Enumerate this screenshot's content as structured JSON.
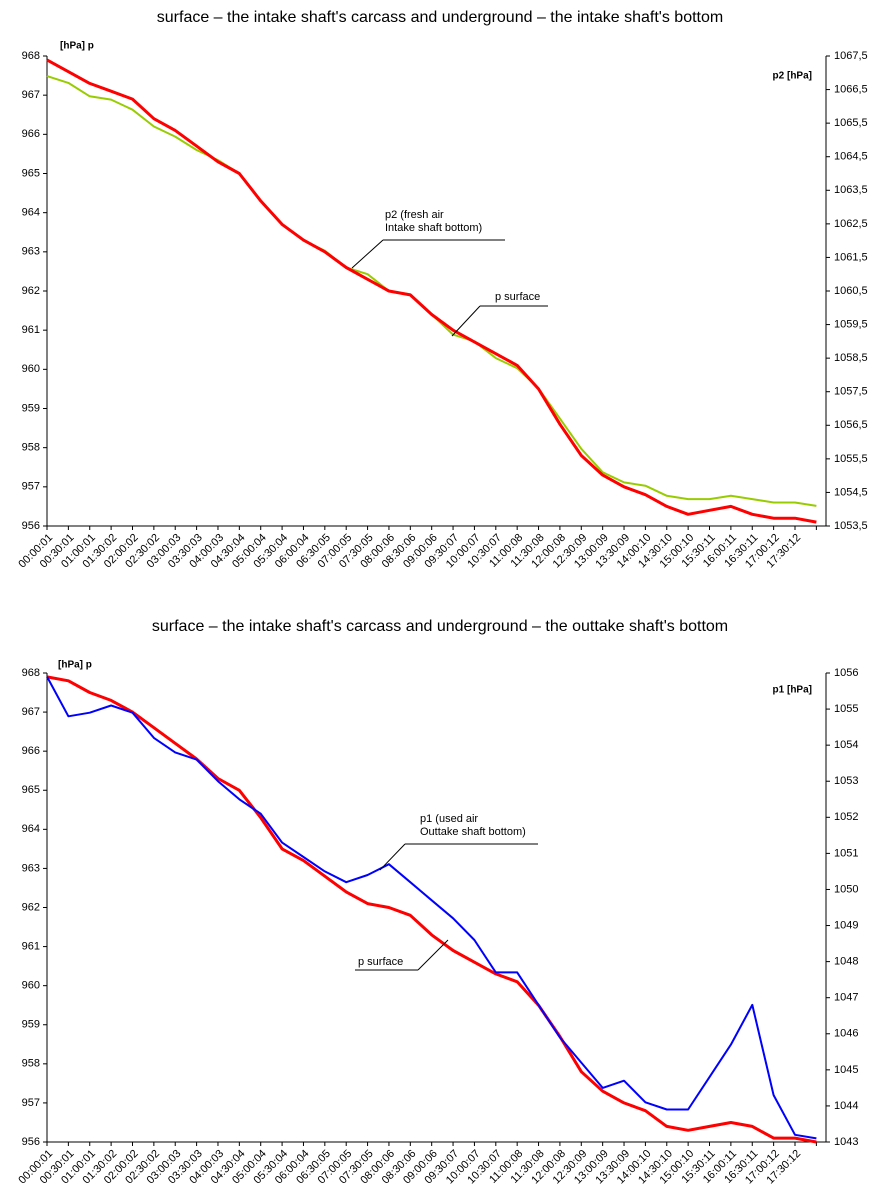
{
  "chart_data": [
    {
      "type": "line",
      "title": "surface – the intake shaft's carcass and underground – the intake shaft's bottom",
      "y_label": "[hPa] p",
      "y2_label": "p2 [hPa]",
      "categories": [
        "00:00:01",
        "00:30:01",
        "01:00:01",
        "01:30:02",
        "02:00:02",
        "02:30:02",
        "03:00:03",
        "03:30:03",
        "04:00:03",
        "04:30:04",
        "05:00:04",
        "05:30:04",
        "06:00:04",
        "06:30:05",
        "07:00:05",
        "07:30:05",
        "08:00:06",
        "08:30:06",
        "09:00:06",
        "09:30:07",
        "10:00:07",
        "10:30:07",
        "11:00:08",
        "11:30:08",
        "12:00:08",
        "12:30:09",
        "13:00:09",
        "13:30:09",
        "14:00:10",
        "14:30:10",
        "15:00:10",
        "15:30:11",
        "16:00:11",
        "16:30:11",
        "17:00:12",
        "17:30:12",
        null
      ],
      "series": [
        {
          "color": "#99cc00",
          "axis": "y2",
          "values": [
            1066.9,
            1066.7,
            1066.3,
            1066.2,
            1065.9,
            1065.4,
            1065.1,
            1064.7,
            1064.4,
            1064.0,
            1063.2,
            1062.5,
            1062.0,
            1061.7,
            1061.2,
            1061.0,
            1060.5,
            1060.4,
            1059.8,
            1059.2,
            1059.0,
            1058.5,
            1058.2,
            1057.6,
            1056.7,
            1055.8,
            1055.1,
            1054.8,
            1054.7,
            1054.4,
            1054.3,
            1054.3,
            1054.4,
            1054.3,
            1054.2,
            1054.2,
            1054.1
          ]
        },
        {
          "color": "#ff0000",
          "values": [
            967.9,
            967.6,
            967.3,
            967.1,
            966.9,
            966.4,
            966.1,
            965.7,
            965.3,
            965.0,
            964.3,
            963.7,
            963.3,
            963.0,
            962.6,
            962.3,
            962.0,
            961.9,
            961.4,
            961.0,
            960.7,
            960.4,
            960.1,
            959.5,
            958.6,
            957.8,
            957.3,
            957.0,
            956.8,
            956.5,
            956.3,
            956.4,
            956.5,
            956.3,
            956.2,
            956.2,
            956.1
          ]
        }
      ],
      "annotations": [
        {
          "lines": [
            "p2 (fresh air",
            "Intake shaft bottom)"
          ]
        },
        {
          "lines": [
            "p surface"
          ]
        }
      ],
      "ylim": [
        956,
        968
      ],
      "yticks": [
        956,
        957,
        958,
        959,
        960,
        961,
        962,
        963,
        964,
        965,
        966,
        967,
        968
      ],
      "y2lim": [
        1053.5,
        1067.5
      ],
      "y2ticks": [
        {
          "value": 1053.5,
          "label": "1053,5"
        },
        {
          "value": 1054.5,
          "label": "1054,5"
        },
        {
          "value": 1055.5,
          "label": "1055,5"
        },
        {
          "value": 1056.5,
          "label": "1056,5"
        },
        {
          "value": 1057.5,
          "label": "1057,5"
        },
        {
          "value": 1058.5,
          "label": "1058,5"
        },
        {
          "value": 1059.5,
          "label": "1059,5"
        },
        {
          "value": 1060.5,
          "label": "1060,5"
        },
        {
          "value": 1061.5,
          "label": "1061,5"
        },
        {
          "value": 1062.5,
          "label": "1062,5"
        },
        {
          "value": 1063.5,
          "label": "1063,5"
        },
        {
          "value": 1064.5,
          "label": "1064,5"
        },
        {
          "value": 1065.5,
          "label": "1065,5"
        },
        {
          "value": 1066.5,
          "label": "1066,5"
        },
        {
          "value": 1067.5,
          "label": "1067,5"
        }
      ],
      "grid": false
    },
    {
      "type": "line",
      "title": "surface – the intake shaft's carcass and underground – the outtake shaft's bottom",
      "y_label": "[hPa] p",
      "y2_label": "p1 [hPa]",
      "categories": [
        "00:00:01",
        "00:30:01",
        "01:00:01",
        "01:30:02",
        "02:00:02",
        "02:30:02",
        "03:00:03",
        "03:30:03",
        "04:00:03",
        "04:30:04",
        "05:00:04",
        "05:30:04",
        "06:00:04",
        "06:30:05",
        "07:00:05",
        "07:30:05",
        "08:00:06",
        "08:30:06",
        "09:00:06",
        "09:30:07",
        "10:00:07",
        "10:30:07",
        "11:00:08",
        "11:30:08",
        "12:00:08",
        "12:30:09",
        "13:00:09",
        "13:30:09",
        "14:00:10",
        "14:30:10",
        "15:00:10",
        "15:30:11",
        "16:00:11",
        "16:30:11",
        "17:00:12",
        "17:30:12",
        null
      ],
      "series": [
        {
          "color": "#ff0000",
          "values": [
            967.9,
            967.8,
            967.5,
            967.3,
            967.0,
            966.6,
            966.2,
            965.8,
            965.3,
            965.0,
            964.3,
            963.5,
            963.2,
            962.8,
            962.4,
            962.1,
            962.0,
            961.8,
            961.3,
            960.9,
            960.6,
            960.3,
            960.1,
            959.5,
            958.7,
            957.8,
            957.3,
            957.0,
            956.8,
            956.4,
            956.3,
            956.4,
            956.5,
            956.4,
            956.1,
            956.1,
            956.0
          ]
        },
        {
          "color": "#0000ff",
          "axis": "y2",
          "values": [
            1055.9,
            1054.8,
            1054.9,
            1055.1,
            1054.9,
            1054.2,
            1053.8,
            1053.6,
            1053.0,
            1052.5,
            1052.1,
            1051.3,
            1050.9,
            1050.5,
            1050.2,
            1050.4,
            1050.7,
            1050.2,
            1049.7,
            1049.2,
            1048.6,
            1047.7,
            1047.7,
            1046.8,
            1045.9,
            1045.2,
            1044.5,
            1044.7,
            1044.1,
            1043.9,
            1043.9,
            1044.8,
            1045.7,
            1046.8,
            1044.3,
            1043.2,
            1043.1
          ]
        }
      ],
      "annotations": [
        {
          "lines": [
            "p1 (used air",
            "Outtake shaft bottom)"
          ]
        },
        {
          "lines": [
            "p surface"
          ]
        }
      ],
      "ylim": [
        956,
        968
      ],
      "yticks": [
        956,
        957,
        958,
        959,
        960,
        961,
        962,
        963,
        964,
        965,
        966,
        967,
        968
      ],
      "y2lim": [
        1043,
        1056
      ],
      "y2ticks": [
        1043,
        1044,
        1045,
        1046,
        1047,
        1048,
        1049,
        1050,
        1051,
        1052,
        1053,
        1054,
        1055,
        1056
      ],
      "grid": false
    }
  ]
}
